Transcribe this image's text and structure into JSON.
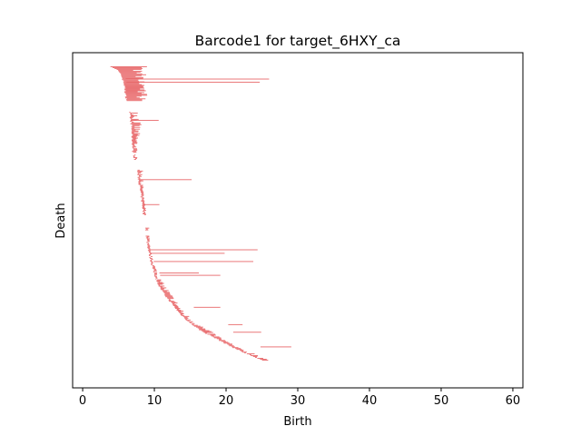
{
  "chart_data": {
    "type": "bar",
    "orientation": "horizontal",
    "title": "Barcode1 for target_6HXY_ca",
    "xlabel": "Birth",
    "ylabel": "Death",
    "xlim": [
      -1.4,
      61.4
    ],
    "xticks": [
      0,
      10,
      20,
      30,
      40,
      50,
      60
    ],
    "xtick_labels": [
      "0",
      "10",
      "20",
      "30",
      "40",
      "50",
      "60"
    ],
    "yticks_shown": false,
    "grid": false,
    "bar_color": "#e8696b",
    "bar_count": 330,
    "ordering": "bars sorted top to bottom; each bar runs from its birth value (left end) to its death value (right end)",
    "left_edge_profile": [
      [
        0.0,
        4.0
      ],
      [
        0.01,
        4.8
      ],
      [
        0.03,
        5.4
      ],
      [
        0.06,
        5.8
      ],
      [
        0.1,
        6.0
      ],
      [
        0.118,
        6.2
      ],
      [
        0.155,
        6.5
      ],
      [
        0.2,
        6.8
      ],
      [
        0.29,
        7.0
      ],
      [
        0.35,
        7.6
      ],
      [
        0.4,
        7.9
      ],
      [
        0.45,
        8.2
      ],
      [
        0.5,
        8.5
      ],
      [
        0.55,
        8.8
      ],
      [
        0.6,
        9.0
      ],
      [
        0.64,
        9.3
      ],
      [
        0.69,
        9.8
      ],
      [
        0.72,
        10.2
      ],
      [
        0.75,
        10.7
      ],
      [
        0.78,
        11.5
      ],
      [
        0.81,
        12.5
      ],
      [
        0.84,
        13.5
      ],
      [
        0.87,
        14.8
      ],
      [
        0.9,
        16.5
      ],
      [
        0.925,
        18.5
      ],
      [
        0.945,
        20.0
      ],
      [
        0.96,
        21.2
      ],
      [
        0.975,
        22.5
      ],
      [
        0.99,
        24.0
      ],
      [
        1.0,
        25.0
      ]
    ],
    "short_bar_extent": [
      [
        0.0,
        9.3
      ],
      [
        0.1,
        8.5
      ],
      [
        0.118,
        8.4
      ],
      [
        0.155,
        8.2
      ],
      [
        0.2,
        8.2
      ],
      [
        0.29,
        7.6
      ],
      [
        0.35,
        8.4
      ],
      [
        0.45,
        8.6
      ],
      [
        0.55,
        9.3
      ],
      [
        0.64,
        9.5
      ],
      [
        0.72,
        10.8
      ],
      [
        0.78,
        12.6
      ],
      [
        0.84,
        14.3
      ],
      [
        0.9,
        17.8
      ],
      [
        0.96,
        22.0
      ],
      [
        1.0,
        26.8
      ]
    ],
    "gaps": [
      [
        0.118,
        0.155
      ],
      [
        0.292,
        0.298
      ],
      [
        0.318,
        0.35
      ],
      [
        0.505,
        0.548
      ],
      [
        0.558,
        0.575
      ]
    ],
    "long_bars": [
      {
        "position": 0.042,
        "birth": 6.0,
        "death": 26.0
      },
      {
        "position": 0.053,
        "birth": 6.1,
        "death": 24.7
      },
      {
        "position": 0.183,
        "birth": 6.7,
        "death": 10.6
      },
      {
        "position": 0.385,
        "birth": 7.9,
        "death": 15.2
      },
      {
        "position": 0.47,
        "birth": 8.5,
        "death": 10.7
      },
      {
        "position": 0.624,
        "birth": 9.4,
        "death": 24.4
      },
      {
        "position": 0.636,
        "birth": 9.5,
        "death": 19.8
      },
      {
        "position": 0.664,
        "birth": 9.9,
        "death": 23.8
      },
      {
        "position": 0.703,
        "birth": 10.7,
        "death": 16.2
      },
      {
        "position": 0.711,
        "birth": 10.8,
        "death": 19.2
      },
      {
        "position": 0.82,
        "birth": 15.5,
        "death": 19.2
      },
      {
        "position": 0.879,
        "birth": 20.3,
        "death": 22.3
      },
      {
        "position": 0.905,
        "birth": 21.0,
        "death": 24.9
      },
      {
        "position": 0.955,
        "birth": 24.8,
        "death": 29.1
      }
    ]
  }
}
